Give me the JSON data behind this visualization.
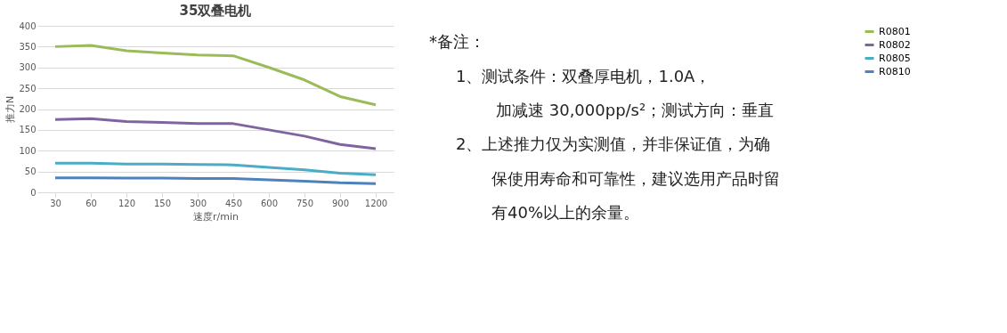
{
  "chart_data": {
    "type": "line",
    "title": "35双叠电机",
    "xlabel": "速度r/min",
    "ylabel": "推力N",
    "categories": [
      "30",
      "60",
      "120",
      "150",
      "300",
      "450",
      "600",
      "750",
      "900",
      "1200"
    ],
    "series": [
      {
        "name": "R0801",
        "color": "#9bbb59",
        "values": [
          350,
          353,
          340,
          335,
          330,
          328,
          300,
          270,
          230,
          210
        ]
      },
      {
        "name": "R0802",
        "color": "#8064a2",
        "values": [
          175,
          177,
          170,
          168,
          165,
          165,
          150,
          135,
          115,
          105
        ]
      },
      {
        "name": "R0805",
        "color": "#4bacc6",
        "values": [
          70,
          70,
          68,
          68,
          67,
          66,
          60,
          54,
          46,
          42
        ]
      },
      {
        "name": "R0810",
        "color": "#4f81bd",
        "values": [
          35,
          35,
          34,
          34,
          33,
          33,
          30,
          27,
          23,
          21
        ]
      }
    ],
    "ylim": [
      0,
      400
    ],
    "yticks": [
      0,
      50,
      100,
      150,
      200,
      250,
      300,
      350,
      400
    ],
    "grid": "y",
    "legend": "right",
    "marker": "none",
    "line_style": "solid",
    "annotations": [
      "*备注：",
      "1、测试条件：双叠厚电机，1.0A，",
      "加减速 30,000pp/s²；测试方向：垂直",
      "2、上述推力仅为实测值，并非保证值，为确",
      "保使用寿命和可靠性，建议选用产品时留",
      "有40%以上的余量。"
    ]
  }
}
